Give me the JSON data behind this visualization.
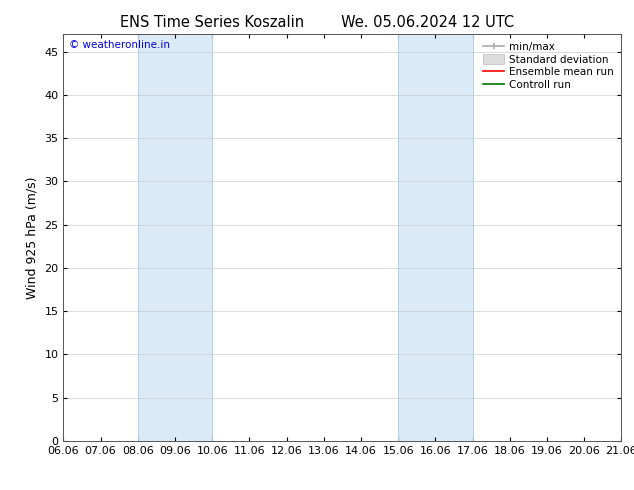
{
  "title_left": "ENS Time Series Koszalin",
  "title_right": "We. 05.06.2024 12 UTC",
  "ylabel": "Wind 925 hPa (m/s)",
  "watermark": "© weatheronline.in",
  "ylim": [
    0,
    47
  ],
  "yticks": [
    0,
    5,
    10,
    15,
    20,
    25,
    30,
    35,
    40,
    45
  ],
  "xtick_labels": [
    "06.06",
    "07.06",
    "08.06",
    "09.06",
    "10.06",
    "11.06",
    "12.06",
    "13.06",
    "14.06",
    "15.06",
    "16.06",
    "17.06",
    "18.06",
    "19.06",
    "20.06",
    "21.06"
  ],
  "xtick_positions": [
    0,
    1,
    2,
    3,
    4,
    5,
    6,
    7,
    8,
    9,
    10,
    11,
    12,
    13,
    14,
    15
  ],
  "shaded_bands": [
    {
      "x_start": 2,
      "x_end": 4,
      "color": "#daeaf7"
    },
    {
      "x_start": 9,
      "x_end": 11,
      "color": "#daeaf7"
    }
  ],
  "shade_border_color": "#b0cfe8",
  "background_color": "#ffffff",
  "plot_bg_color": "#ffffff",
  "grid_color": "#cccccc",
  "title_fontsize": 10.5,
  "tick_fontsize": 8,
  "ylabel_fontsize": 9,
  "legend_fontsize": 7.5,
  "watermark_color": "#0000dd",
  "watermark_fontsize": 7.5,
  "border_color": "#555555",
  "legend_items": [
    {
      "label": "min/max",
      "color": "#aaaaaa"
    },
    {
      "label": "Standard deviation",
      "color": "#cccccc"
    },
    {
      "label": "Ensemble mean run",
      "color": "#ff0000"
    },
    {
      "label": "Controll run",
      "color": "#007700"
    }
  ]
}
